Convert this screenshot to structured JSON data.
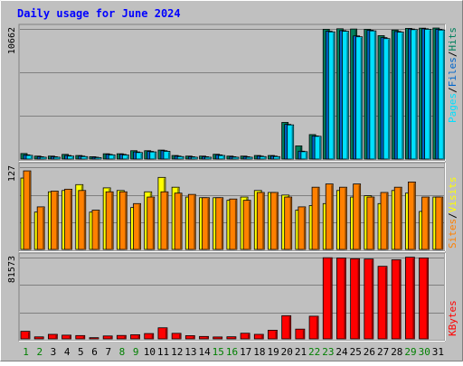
{
  "chart_data": {
    "type": "bar",
    "title": "Daily usage for June 2024",
    "categories": [
      "1",
      "2",
      "3",
      "4",
      "5",
      "6",
      "7",
      "8",
      "9",
      "10",
      "11",
      "12",
      "13",
      "14",
      "15",
      "16",
      "17",
      "18",
      "19",
      "20",
      "21",
      "22",
      "23",
      "24",
      "25",
      "26",
      "27",
      "28",
      "29",
      "30",
      "31"
    ],
    "weekend_days": [
      "1",
      "2",
      "8",
      "9",
      "15",
      "16",
      "22",
      "23",
      "29",
      "30"
    ],
    "panels": [
      {
        "id": "hits-files-pages",
        "ymax_label": "10662",
        "ymax": 10662,
        "legend": [
          "Pages",
          "/",
          "Files",
          "/",
          "Hits"
        ],
        "legend_colors": [
          "#00e0ff",
          "#000000",
          "#0066cc",
          "#000000",
          "#00805c"
        ],
        "series": [
          {
            "name": "Hits",
            "color": "#00805c",
            "values": [
              450,
              240,
              240,
              380,
              290,
              190,
              430,
              430,
              680,
              680,
              730,
              290,
              240,
              240,
              390,
              240,
              240,
              290,
              290,
              2980,
              1070,
              1990,
              10560,
              10600,
              10580,
              10560,
              10040,
              10500,
              10630,
              10650,
              10660
            ]
          },
          {
            "name": "Files",
            "color": "#0066cc",
            "values": [
              340,
              190,
              190,
              290,
              240,
              150,
              380,
              380,
              580,
              620,
              680,
              240,
              190,
              190,
              340,
              190,
              190,
              240,
              240,
              2820,
              640,
              1880,
              10400,
              10450,
              10020,
              10480,
              9880,
              10380,
              10580,
              10600,
              10560
            ]
          },
          {
            "name": "Pages",
            "color": "#00e0ff",
            "values": [
              300,
              150,
              150,
              240,
              200,
              120,
              340,
              330,
              530,
              580,
              630,
              200,
              150,
              150,
              290,
              150,
              150,
              200,
              200,
              2780,
              600,
              1850,
              10350,
              10400,
              9950,
              10430,
              9800,
              10330,
              10530,
              10560,
              10500
            ]
          }
        ]
      },
      {
        "id": "visits-sites",
        "ymax_label": "127",
        "ymax": 127,
        "legend": [
          "Sites",
          "/",
          "Visits"
        ],
        "legend_colors": [
          "#ff8000",
          "#000000",
          "#ffff00"
        ],
        "series": [
          {
            "name": "Visits",
            "color": "#ffff00",
            "values": [
              109,
              57,
              88,
              90,
              99,
              57,
              94,
              90,
              64,
              88,
              110,
              95,
              80,
              79,
              79,
              75,
              80,
              90,
              87,
              83,
              60,
              67,
              70,
              90,
              80,
              82,
              70,
              90,
              86,
              58,
              80
            ]
          },
          {
            "name": "Sites",
            "color": "#ff8000",
            "values": [
              120,
              65,
              89,
              92,
              90,
              60,
              88,
              88,
              70,
              80,
              88,
              86,
              84,
              79,
              79,
              77,
              75,
              87,
              87,
              80,
              65,
              95,
              100,
              95,
              100,
              80,
              87,
              95,
              103,
              80,
              80
            ]
          }
        ]
      },
      {
        "id": "kbytes",
        "ymax_label": "81573",
        "ymax": 81573,
        "legend": [
          "KBytes"
        ],
        "legend_colors": [
          "#ff0000"
        ],
        "series": [
          {
            "name": "KBytes",
            "color": "#ff0000",
            "values": [
              7500,
              2000,
              4500,
              3700,
              3300,
              1200,
              2900,
              3400,
              4100,
              5300,
              11000,
              5500,
              3200,
              2400,
              1900,
              2100,
              5600,
              4500,
              8600,
              23000,
              9700,
              22500,
              80500,
              80200,
              79500,
              79200,
              72000,
              78500,
              81000,
              80300,
              0
            ]
          }
        ]
      }
    ],
    "grid": true
  }
}
